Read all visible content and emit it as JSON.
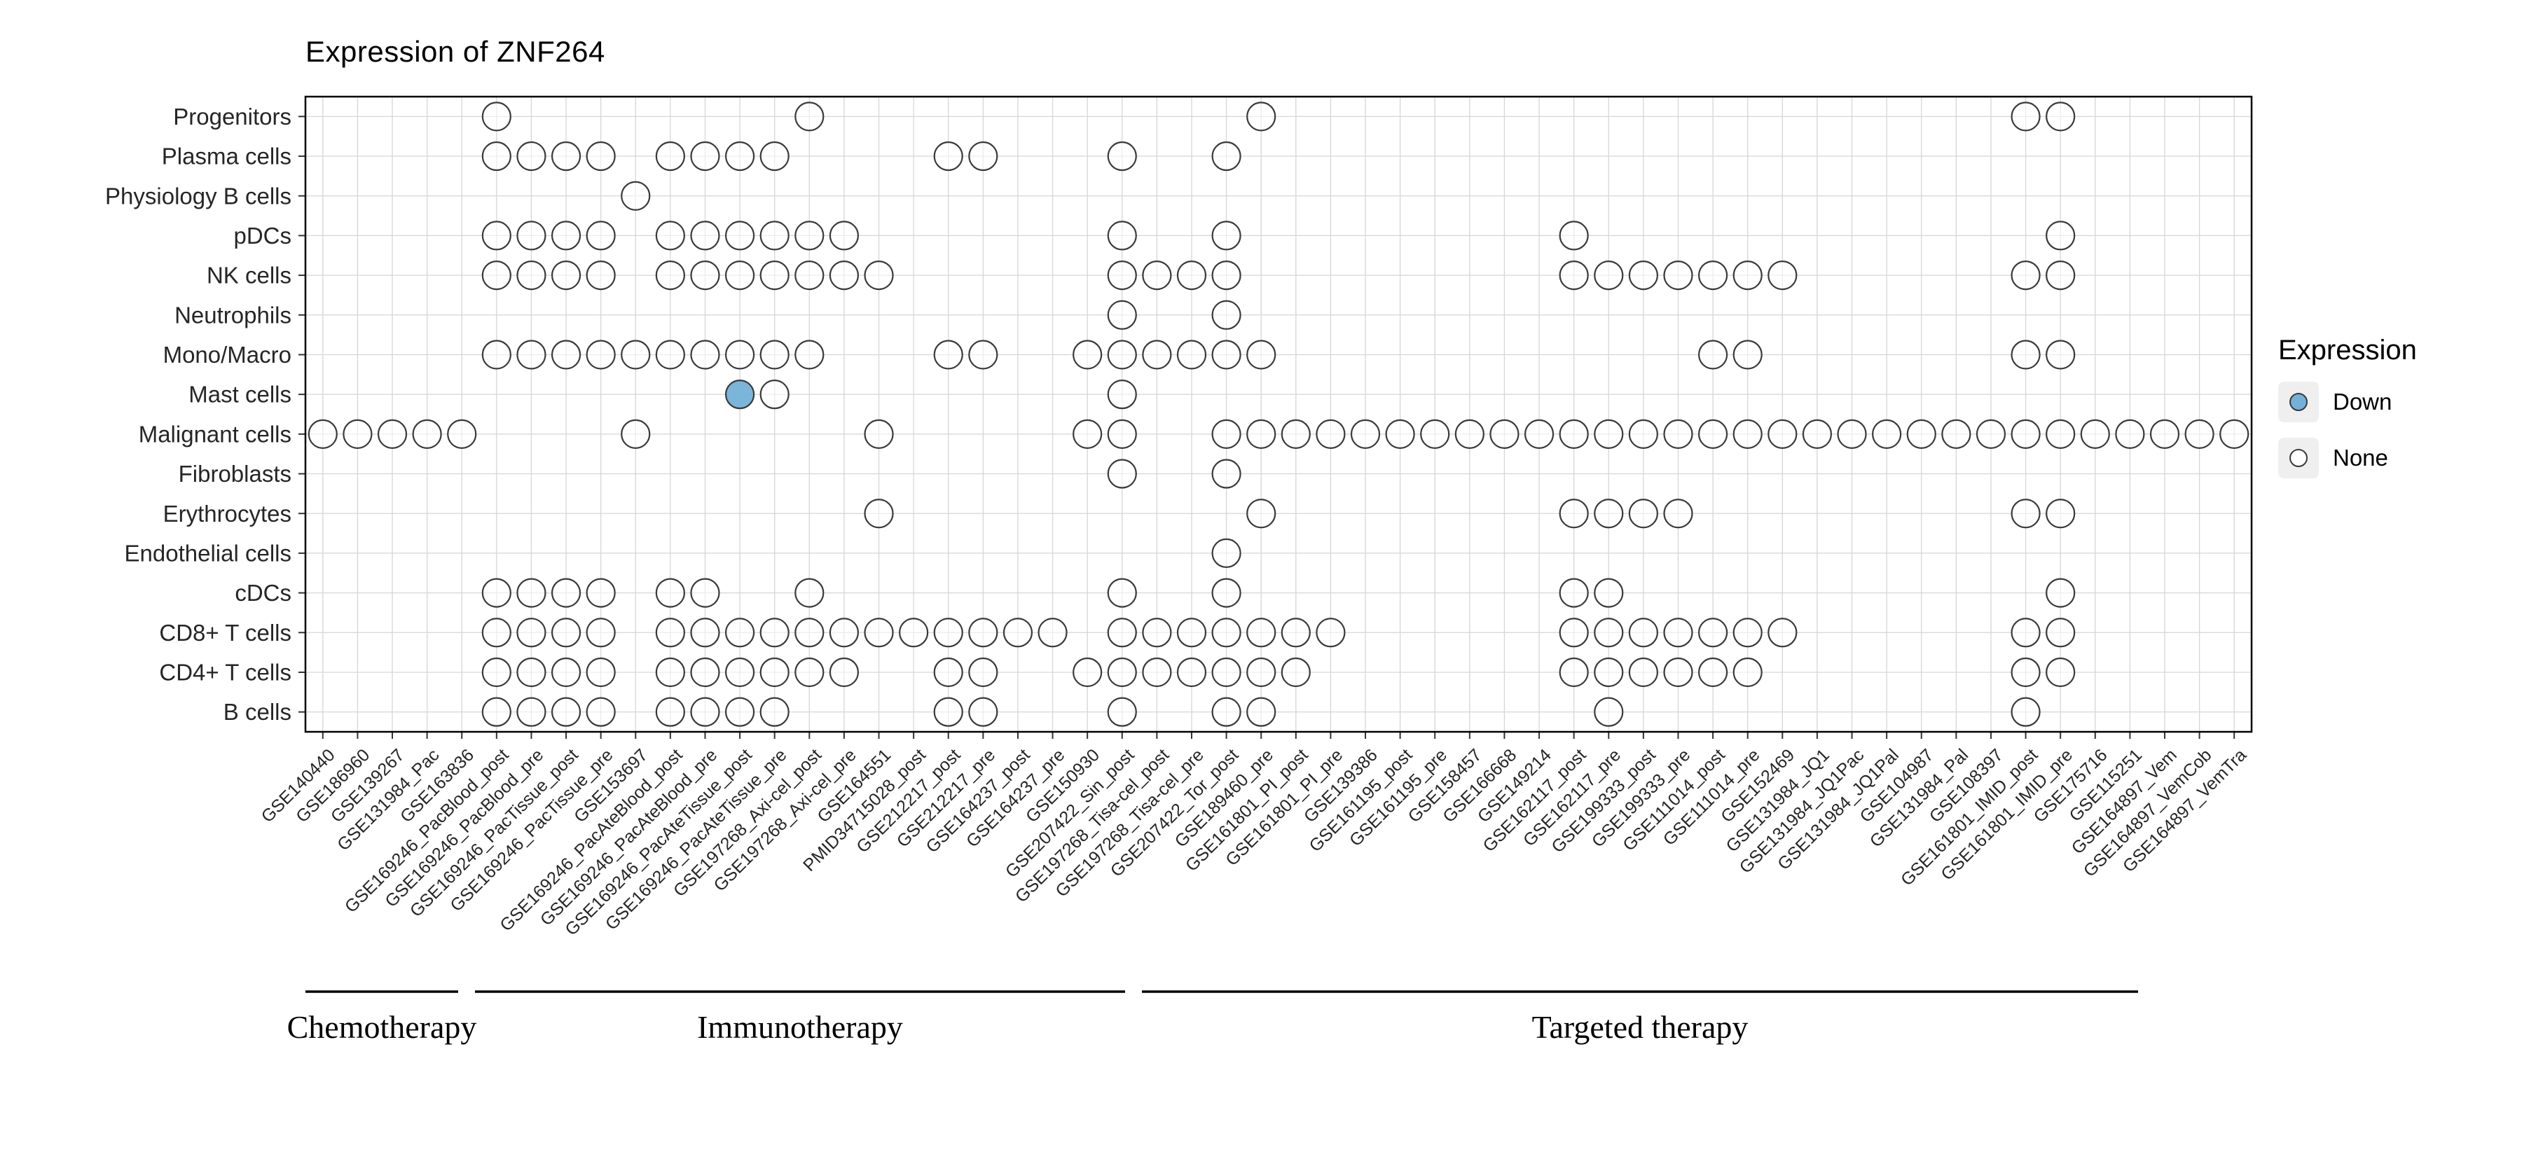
{
  "chart_data": {
    "type": "scatter",
    "variant": "dot-matrix",
    "title": "Expression of ZNF264",
    "legend": {
      "title": "Expression",
      "position": "right",
      "entries": [
        {
          "label": "Down",
          "fill": "#74b1d8"
        },
        {
          "label": "None",
          "fill": "#ffffff"
        }
      ]
    },
    "rows": [
      "Progenitors",
      "Plasma cells",
      "Physiology B cells",
      "pDCs",
      "NK cells",
      "Neutrophils",
      "Mono/Macro",
      "Mast cells",
      "Malignant cells",
      "Fibroblasts",
      "Erythrocytes",
      "Endothelial cells",
      "cDCs",
      "CD8+ T cells",
      "CD4+ T cells",
      "B cells"
    ],
    "columns": [
      "GSE140440",
      "GSE186960",
      "GSE139267",
      "GSE131984_Pac",
      "GSE163836",
      "GSE169246_PacBlood_post",
      "GSE169246_PacBlood_pre",
      "GSE169246_PacTissue_post",
      "GSE169246_PacTissue_pre",
      "GSE153697",
      "GSE169246_PacAteBlood_post",
      "GSE169246_PacAteBlood_pre",
      "GSE169246_PacAteTissue_post",
      "GSE169246_PacAteTissue_pre",
      "GSE197268_Axi-cel_post",
      "GSE197268_Axi-cel_pre",
      "GSE164551",
      "PMID34715028_post",
      "GSE212217_post",
      "GSE212217_pre",
      "GSE164237_post",
      "GSE164237_pre",
      "GSE150930",
      "GSE207422_Sin_post",
      "GSE197268_Tisa-cel_post",
      "GSE197268_Tisa-cel_pre",
      "GSE207422_Tor_post",
      "GSE189460_pre",
      "GSE161801_PI_post",
      "GSE161801_PI_pre",
      "GSE139386",
      "GSE161195_post",
      "GSE161195_pre",
      "GSE158457",
      "GSE166668",
      "GSE149214",
      "GSE162117_post",
      "GSE162117_pre",
      "GSE199333_post",
      "GSE199333_pre",
      "GSE111014_post",
      "GSE111014_pre",
      "GSE152469",
      "GSE131984_JQ1",
      "GSE131984_JQ1Pac",
      "GSE131984_JQ1Pal",
      "GSE104987",
      "GSE131984_Pal",
      "GSE108397",
      "GSE161801_IMID_post",
      "GSE161801_IMID_pre",
      "GSE175716",
      "GSE115251",
      "GSE164897_Vem",
      "GSE164897_VemCob",
      "GSE164897_VemTra"
    ],
    "therapy_groups": [
      {
        "label": "Chemotherapy",
        "col_start": 0,
        "col_end": 4
      },
      {
        "label": "Immunotherapy",
        "col_start": 5,
        "col_end": 26
      },
      {
        "label": "Targeted therapy",
        "col_start": 27,
        "col_end": 55
      }
    ],
    "points": {
      "Progenitors": [
        5,
        14,
        27,
        49,
        50
      ],
      "Plasma cells": [
        5,
        6,
        7,
        8,
        10,
        11,
        12,
        13,
        18,
        19,
        23,
        26
      ],
      "Physiology B cells": [
        9
      ],
      "pDCs": [
        5,
        6,
        7,
        8,
        10,
        11,
        12,
        13,
        14,
        15,
        23,
        26,
        36,
        50
      ],
      "NK cells": [
        5,
        6,
        7,
        8,
        10,
        11,
        12,
        13,
        14,
        15,
        16,
        23,
        24,
        25,
        26,
        36,
        37,
        38,
        39,
        40,
        41,
        42,
        49,
        50
      ],
      "Neutrophils": [
        23,
        26
      ],
      "Mono/Macro": [
        5,
        6,
        7,
        8,
        9,
        10,
        11,
        12,
        13,
        14,
        18,
        19,
        22,
        23,
        24,
        25,
        26,
        27,
        40,
        41,
        49,
        50
      ],
      "Mast cells": [
        13,
        23
      ],
      "Malignant cells": [
        0,
        1,
        2,
        3,
        4,
        9,
        16,
        22,
        23,
        26,
        27,
        28,
        29,
        30,
        31,
        32,
        33,
        34,
        35,
        36,
        37,
        38,
        39,
        40,
        41,
        42,
        43,
        44,
        45,
        46,
        47,
        48,
        49,
        50,
        51,
        52,
        53,
        54,
        55
      ],
      "Fibroblasts": [
        23,
        26
      ],
      "Erythrocytes": [
        16,
        27,
        36,
        37,
        38,
        39,
        49,
        50
      ],
      "Endothelial cells": [
        26
      ],
      "cDCs": [
        5,
        6,
        7,
        8,
        10,
        11,
        14,
        23,
        26,
        36,
        37,
        50
      ],
      "CD8+ T cells": [
        5,
        6,
        7,
        8,
        10,
        11,
        12,
        13,
        14,
        15,
        16,
        17,
        18,
        19,
        20,
        21,
        23,
        24,
        25,
        26,
        27,
        28,
        29,
        36,
        37,
        38,
        39,
        40,
        41,
        42,
        49,
        50
      ],
      "CD4+ T cells": [
        5,
        6,
        7,
        8,
        10,
        11,
        12,
        13,
        14,
        15,
        18,
        19,
        22,
        23,
        24,
        25,
        26,
        27,
        28,
        36,
        37,
        38,
        39,
        40,
        41,
        49,
        50
      ],
      "B cells": [
        5,
        6,
        7,
        8,
        10,
        11,
        12,
        13,
        18,
        19,
        23,
        26,
        27,
        37,
        49
      ]
    },
    "down_points": [
      {
        "row": "Mast cells",
        "col_index": 12,
        "column": "GSE169246_PacAteTissue_post"
      }
    ],
    "colors": {
      "none_fill": "#ffffff",
      "down_fill": "#74b1d8",
      "circle_stroke": "#3a3a3a",
      "grid": "#d6d6d6",
      "panel_border": "#000000"
    },
    "layout_hints": {
      "grid": "on",
      "x_tick_rotation": 45,
      "legend_position": "right"
    }
  }
}
